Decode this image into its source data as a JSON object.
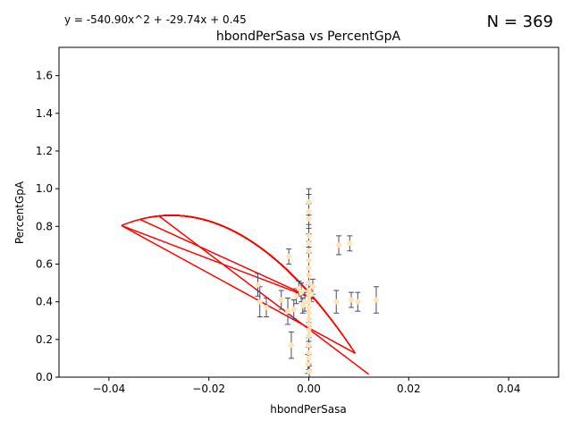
{
  "chart_data": {
    "type": "scatter",
    "title": "hbondPerSasa vs PercentGpA",
    "xlabel": "hbondPerSasa",
    "ylabel": "PercentGpA",
    "equation": "y = -540.90x^2 + -29.74x + 0.45",
    "n_label": "N = 369",
    "xlim": [
      -0.05,
      0.05
    ],
    "ylim": [
      0.0,
      1.75
    ],
    "xticks": [
      -0.04,
      -0.02,
      0.0,
      0.02,
      0.04
    ],
    "xtick_labels": [
      "−0.04",
      "−0.02",
      "0.00",
      "0.02",
      "0.04"
    ],
    "yticks": [
      0.0,
      0.2,
      0.4,
      0.6,
      0.8,
      1.0,
      1.2,
      1.4,
      1.6
    ],
    "ytick_labels": [
      "0.0",
      "0.2",
      "0.4",
      "0.6",
      "0.8",
      "1.0",
      "1.2",
      "1.4",
      "1.6"
    ],
    "grid": false,
    "fit": {
      "a": -540.9,
      "b": -29.74,
      "c": 0.45
    },
    "colors": {
      "points": "#ffe4b5",
      "errorbars": "#4a4a6a",
      "fit": "#ff0000"
    },
    "points": [
      {
        "x": 0.0,
        "y": 0.93,
        "err": 0.07
      },
      {
        "x": 0.0,
        "y": 0.88,
        "err": 0.09
      },
      {
        "x": 0.0,
        "y": 0.84,
        "err": 0.08
      },
      {
        "x": 0.0,
        "y": 0.75,
        "err": 0.06
      },
      {
        "x": 0.0,
        "y": 0.71,
        "err": 0.05
      },
      {
        "x": 0.0,
        "y": 0.67,
        "err": 0.05
      },
      {
        "x": 0.0,
        "y": 0.62,
        "err": 0.04
      },
      {
        "x": 0.0,
        "y": 0.58,
        "err": 0.04
      },
      {
        "x": 0.0,
        "y": 0.54,
        "err": 0.04
      },
      {
        "x": 0.0,
        "y": 0.5,
        "err": 0.04
      },
      {
        "x": 0.0,
        "y": 0.46,
        "err": 0.03
      },
      {
        "x": 0.0,
        "y": 0.43,
        "err": 0.03
      },
      {
        "x": 0.0,
        "y": 0.4,
        "err": 0.03
      },
      {
        "x": 0.0,
        "y": 0.37,
        "err": 0.03
      },
      {
        "x": 0.0,
        "y": 0.34,
        "err": 0.03
      },
      {
        "x": 0.0,
        "y": 0.31,
        "err": 0.03
      },
      {
        "x": 0.0,
        "y": 0.28,
        "err": 0.03
      },
      {
        "x": 0.0,
        "y": 0.25,
        "err": 0.04
      },
      {
        "x": 0.0,
        "y": 0.22,
        "err": 0.05
      },
      {
        "x": 0.0,
        "y": 0.17,
        "err": 0.05
      },
      {
        "x": 0.0,
        "y": 0.13,
        "err": 0.06
      },
      {
        "x": 0.0,
        "y": 0.1,
        "err": 0.06
      },
      {
        "x": -0.0002,
        "y": 0.07,
        "err": 0.05
      },
      {
        "x": 0.0001,
        "y": 0.03,
        "err": 0.03
      },
      {
        "x": -0.0008,
        "y": 0.4,
        "err": 0.05
      },
      {
        "x": -0.0012,
        "y": 0.38,
        "err": 0.04
      },
      {
        "x": -0.0015,
        "y": 0.45,
        "err": 0.05
      },
      {
        "x": -0.002,
        "y": 0.47,
        "err": 0.04
      },
      {
        "x": -0.0025,
        "y": 0.43,
        "err": 0.04
      },
      {
        "x": -0.003,
        "y": 0.36,
        "err": 0.05
      },
      {
        "x": -0.0035,
        "y": 0.17,
        "err": 0.07
      },
      {
        "x": -0.004,
        "y": 0.64,
        "err": 0.04
      },
      {
        "x": -0.0042,
        "y": 0.35,
        "err": 0.07
      },
      {
        "x": -0.0055,
        "y": 0.41,
        "err": 0.05
      },
      {
        "x": -0.0085,
        "y": 0.37,
        "err": 0.05
      },
      {
        "x": -0.0098,
        "y": 0.4,
        "err": 0.08
      },
      {
        "x": -0.0102,
        "y": 0.49,
        "err": 0.06
      },
      {
        "x": 0.0005,
        "y": 0.44,
        "err": 0.04
      },
      {
        "x": 0.0008,
        "y": 0.48,
        "err": 0.04
      },
      {
        "x": 0.0055,
        "y": 0.4,
        "err": 0.06
      },
      {
        "x": 0.006,
        "y": 0.7,
        "err": 0.05
      },
      {
        "x": 0.0082,
        "y": 0.71,
        "err": 0.04
      },
      {
        "x": 0.0085,
        "y": 0.41,
        "err": 0.04
      },
      {
        "x": 0.0098,
        "y": 0.4,
        "err": 0.05
      },
      {
        "x": 0.0135,
        "y": 0.41,
        "err": 0.07
      }
    ],
    "fit_lines": [
      {
        "x": [
          -0.0375,
          0.0093
        ]
      },
      {
        "x": [
          -0.0338,
          0.0085
        ]
      },
      {
        "x": [
          -0.0322,
          0.0012
        ]
      },
      {
        "x": [
          -0.0318,
          0.0068
        ]
      },
      {
        "x": [
          -0.0314,
          0.0056
        ]
      },
      {
        "x": [
          -0.031,
          0.0046
        ]
      },
      {
        "x": [
          -0.0306,
          0.0038
        ]
      },
      {
        "x": [
          -0.0302,
          0.0031
        ]
      },
      {
        "x": [
          -0.0298,
          0.0025
        ]
      },
      {
        "x": [
          -0.0294,
          0.002
        ]
      },
      {
        "x": [
          -0.029,
          0.0016
        ]
      },
      {
        "x": [
          -0.0286,
          0.0012
        ]
      },
      {
        "x": [
          -0.0282,
          0.0008
        ]
      },
      {
        "x": [
          -0.0278,
          0.0005
        ]
      },
      {
        "x": [
          -0.0274,
          0.0003
        ]
      },
      {
        "x": [
          -0.027,
          0.0001
        ]
      },
      {
        "x": [
          -0.0266,
          0.0
        ]
      },
      {
        "x": [
          -0.0262,
          -0.0002
        ]
      },
      {
        "x": [
          -0.0258,
          -0.0003
        ]
      },
      {
        "x": [
          -0.0254,
          -0.0004
        ]
      },
      {
        "x": [
          -0.025,
          -0.0005
        ]
      },
      {
        "x": [
          -0.0246,
          -0.0006
        ]
      },
      {
        "x": [
          -0.0242,
          -0.0007
        ]
      },
      {
        "x": [
          -0.0238,
          -0.0008
        ]
      },
      {
        "x": [
          -0.0234,
          -0.0009
        ]
      },
      {
        "x": [
          -0.023,
          -0.001
        ]
      },
      {
        "x": [
          -0.0226,
          -0.0012
        ]
      },
      {
        "x": [
          -0.0222,
          -0.0014
        ]
      },
      {
        "x": [
          -0.0218,
          -0.0016
        ]
      },
      {
        "x": [
          -0.0214,
          -0.0018
        ]
      },
      {
        "x": [
          -0.021,
          -0.002
        ]
      },
      {
        "x": [
          -0.0295,
          0.0055
        ]
      },
      {
        "x": [
          -0.0275,
          0.0045
        ]
      },
      {
        "x": [
          -0.026,
          0.0035
        ]
      },
      {
        "x": [
          -0.0245,
          0.003
        ]
      },
      {
        "x": [
          -0.0235,
          0.0025
        ]
      },
      {
        "x": [
          -0.0225,
          0.002
        ]
      },
      {
        "x": [
          -0.0215,
          0.0015
        ]
      }
    ],
    "chords": [
      {
        "x": [
          -0.0375,
          0.0093
        ]
      },
      {
        "x": [
          -0.0338,
          0.0012
        ]
      },
      {
        "x": [
          -0.0375,
          0.0012
        ]
      },
      {
        "x": [
          -0.03,
          0.012
        ]
      }
    ]
  }
}
